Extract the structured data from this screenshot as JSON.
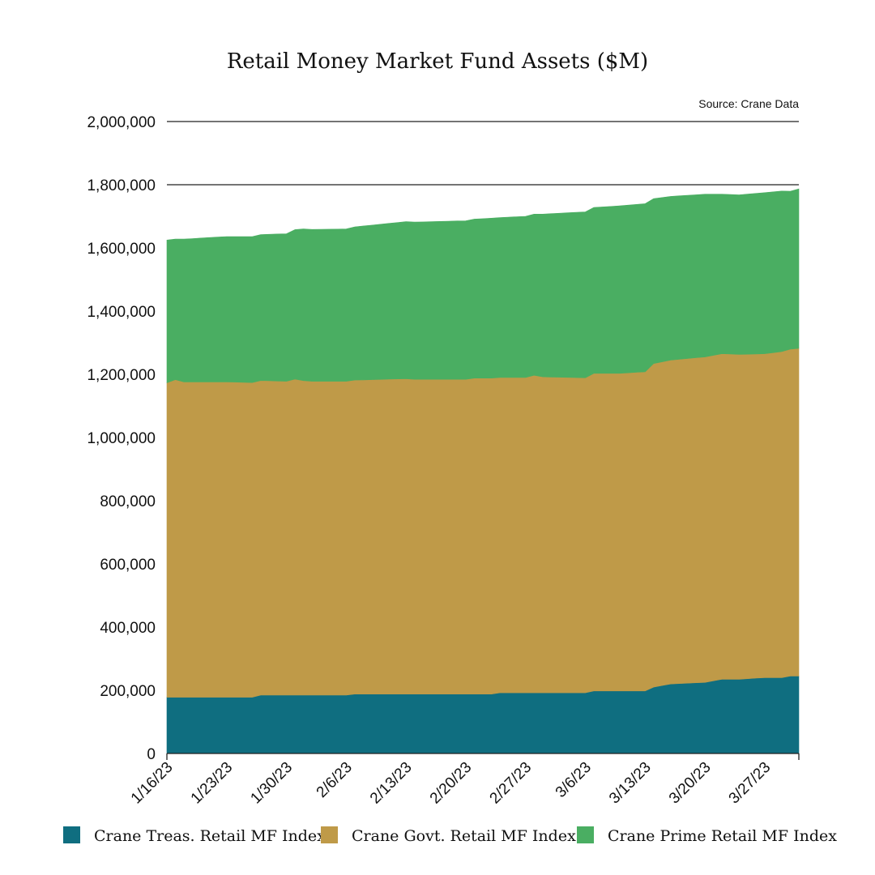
{
  "colors": {
    "treas": "#0f6e80",
    "govt": "#bf9a48",
    "prime": "#4aae62",
    "grid": "#222222"
  },
  "chart_data": {
    "type": "area",
    "stacked": true,
    "title": "Retail Money Market Fund Assets ($M)",
    "source": "Source: Crane Data",
    "ylim": [
      0,
      2000000
    ],
    "yticks": [
      {
        "value": 0,
        "label": "0"
      },
      {
        "value": 200000,
        "label": "200,000"
      },
      {
        "value": 400000,
        "label": "400,000"
      },
      {
        "value": 600000,
        "label": "600,000"
      },
      {
        "value": 800000,
        "label": "800,000"
      },
      {
        "value": 1000000,
        "label": "1,000,000"
      },
      {
        "value": 1200000,
        "label": "1,200,000"
      },
      {
        "value": 1400000,
        "label": "1,400,000"
      },
      {
        "value": 1600000,
        "label": "1,600,000"
      },
      {
        "value": 1800000,
        "label": "1,800,000"
      },
      {
        "value": 2000000,
        "label": "2,000,000"
      }
    ],
    "gridlines": [
      1800000,
      2000000
    ],
    "x_range": [
      "2023-01-16",
      "2023-03-31"
    ],
    "xticks": [
      {
        "date": "2023-01-16",
        "label": "1/16/23"
      },
      {
        "date": "2023-01-23",
        "label": "1/23/23"
      },
      {
        "date": "2023-01-30",
        "label": "1/30/23"
      },
      {
        "date": "2023-02-06",
        "label": "2/6/23"
      },
      {
        "date": "2023-02-13",
        "label": "2/13/23"
      },
      {
        "date": "2023-02-20",
        "label": "2/20/23"
      },
      {
        "date": "2023-02-27",
        "label": "2/27/23"
      },
      {
        "date": "2023-03-06",
        "label": "3/6/23"
      },
      {
        "date": "2023-03-13",
        "label": "3/13/23"
      },
      {
        "date": "2023-03-20",
        "label": "3/20/23"
      },
      {
        "date": "2023-03-27",
        "label": "3/27/23"
      }
    ],
    "legend_position": "bottom",
    "series": [
      {
        "key": "treas",
        "name": "Crane Treas. Retail MF Index",
        "points": [
          [
            "2023-01-16",
            178000
          ],
          [
            "2023-01-23",
            178000
          ],
          [
            "2023-01-26",
            178000
          ],
          [
            "2023-01-27",
            185000
          ],
          [
            "2023-01-30",
            185000
          ],
          [
            "2023-02-06",
            185000
          ],
          [
            "2023-02-07",
            188000
          ],
          [
            "2023-02-13",
            188000
          ],
          [
            "2023-02-20",
            188000
          ],
          [
            "2023-02-23",
            188000
          ],
          [
            "2023-02-24",
            192000
          ],
          [
            "2023-02-27",
            192000
          ],
          [
            "2023-03-06",
            192000
          ],
          [
            "2023-03-07",
            198000
          ],
          [
            "2023-03-13",
            198000
          ],
          [
            "2023-03-14",
            210000
          ],
          [
            "2023-03-16",
            220000
          ],
          [
            "2023-03-20",
            225000
          ],
          [
            "2023-03-22",
            235000
          ],
          [
            "2023-03-24",
            235000
          ],
          [
            "2023-03-27",
            240000
          ],
          [
            "2023-03-29",
            240000
          ],
          [
            "2023-03-30",
            245000
          ],
          [
            "2023-03-31",
            245000
          ]
        ]
      },
      {
        "key": "govt",
        "name": "Crane Govt. Retail MF Index",
        "points": [
          [
            "2023-01-16",
            995000
          ],
          [
            "2023-01-17",
            1005000
          ],
          [
            "2023-01-18",
            998000
          ],
          [
            "2023-01-23",
            998000
          ],
          [
            "2023-01-30",
            993000
          ],
          [
            "2023-01-31",
            1000000
          ],
          [
            "2023-02-01",
            995000
          ],
          [
            "2023-02-02",
            993000
          ],
          [
            "2023-02-06",
            993000
          ],
          [
            "2023-02-13",
            998000
          ],
          [
            "2023-02-14",
            996000
          ],
          [
            "2023-02-20",
            996000
          ],
          [
            "2023-02-21",
            1000000
          ],
          [
            "2023-02-23",
            1000000
          ],
          [
            "2023-02-24",
            998000
          ],
          [
            "2023-02-27",
            998000
          ],
          [
            "2023-02-28",
            1005000
          ],
          [
            "2023-03-01",
            1000000
          ],
          [
            "2023-03-06",
            997000
          ],
          [
            "2023-03-07",
            1005000
          ],
          [
            "2023-03-10",
            1005000
          ],
          [
            "2023-03-13",
            1010000
          ],
          [
            "2023-03-14",
            1024000
          ],
          [
            "2023-03-16",
            1025000
          ],
          [
            "2023-03-20",
            1030000
          ],
          [
            "2023-03-22",
            1030000
          ],
          [
            "2023-03-27",
            1025000
          ],
          [
            "2023-03-29",
            1032000
          ],
          [
            "2023-03-31",
            1037000
          ]
        ]
      },
      {
        "key": "prime",
        "name": "Crane Prime Retail MF Index",
        "points": [
          [
            "2023-01-16",
            452000
          ],
          [
            "2023-01-17",
            445000
          ],
          [
            "2023-01-18",
            452000
          ],
          [
            "2023-01-23",
            460000
          ],
          [
            "2023-01-26",
            462000
          ],
          [
            "2023-01-27",
            462000
          ],
          [
            "2023-01-30",
            467000
          ],
          [
            "2023-01-31",
            473000
          ],
          [
            "2023-02-01",
            480000
          ],
          [
            "2023-02-06",
            482000
          ],
          [
            "2023-02-07",
            485000
          ],
          [
            "2023-02-13",
            497000
          ],
          [
            "2023-02-20",
            502000
          ],
          [
            "2023-02-23",
            506000
          ],
          [
            "2023-02-24",
            506000
          ],
          [
            "2023-02-27",
            510000
          ],
          [
            "2023-02-28",
            510000
          ],
          [
            "2023-03-01",
            515000
          ],
          [
            "2023-03-06",
            525000
          ],
          [
            "2023-03-07",
            525000
          ],
          [
            "2023-03-10",
            530000
          ],
          [
            "2023-03-13",
            532000
          ],
          [
            "2023-03-14",
            522000
          ],
          [
            "2023-03-16",
            518000
          ],
          [
            "2023-03-20",
            515000
          ],
          [
            "2023-03-22",
            505000
          ],
          [
            "2023-03-24",
            505000
          ],
          [
            "2023-03-27",
            510000
          ],
          [
            "2023-03-29",
            508000
          ],
          [
            "2023-03-30",
            500000
          ],
          [
            "2023-03-31",
            505000
          ]
        ]
      }
    ]
  }
}
